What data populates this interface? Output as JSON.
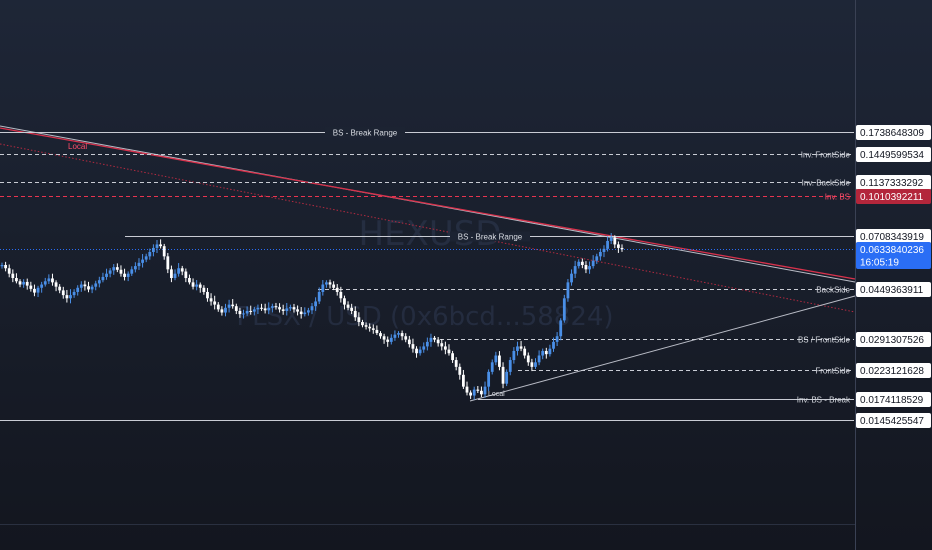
{
  "colors": {
    "up": "#4a8fe7",
    "down": "#ffffff",
    "level": "#c9ccd4",
    "red": "#e8344f",
    "current": "#2a6ef5",
    "axis_bg": "#ffffff",
    "axis_text": "#121621"
  },
  "watermark": {
    "ticker": "HEXUSD",
    "pair": "PLSX / USD (0x6bcd...58824)"
  },
  "chart_data": {
    "type": "candlestick",
    "title": "",
    "y_range": [
      0.0,
      0.19
    ],
    "levels": [
      {
        "name": "BS - Break Range",
        "label": "BS - Break Range",
        "value": 0.1738648309,
        "value_text": "0.1738648309",
        "style": "solid",
        "color": "#c9ccd4",
        "label_pos": "middle"
      },
      {
        "name": "Inv. FrontSide",
        "label": "Inv. FrontSide",
        "value": 0.1449599534,
        "value_text": "0.1449599534",
        "style": "dashed",
        "color": "#c9ccd4",
        "label_pos": "right"
      },
      {
        "name": "Inv. BackSide",
        "label": "Inv. BackSide",
        "value": 0.1137333292,
        "value_text": "0.1137333292",
        "style": "dashed",
        "color": "#c9ccd4",
        "label_pos": "right"
      },
      {
        "name": "Inv. BS",
        "label": "Inv. BS",
        "value": 0.1010392211,
        "value_text": "0.1010392211",
        "style": "dashed",
        "color": "#e8344f",
        "label_pos": "right"
      },
      {
        "name": "BS - Break Range",
        "label": "BS - Break Range",
        "value": 0.0708343919,
        "value_text": "0.0708343919",
        "style": "solid",
        "color": "#c9ccd4",
        "label_pos": "middle"
      },
      {
        "name": "BackSide",
        "label": "BackSide",
        "value": 0.0449363911,
        "value_text": "0.0449363911",
        "style": "dashed",
        "color": "#c9ccd4",
        "label_pos": "right"
      },
      {
        "name": "BS / FrontSide",
        "label": "BS / FrontSide",
        "value": 0.0291307526,
        "value_text": "0.0291307526",
        "style": "dashed",
        "color": "#c9ccd4",
        "label_pos": "right"
      },
      {
        "name": "FrontSide",
        "label": "FrontSide",
        "value": 0.0223121628,
        "value_text": "0.0223121628",
        "style": "dashed",
        "color": "#c9ccd4",
        "label_pos": "right"
      },
      {
        "name": "Inv. BS - Break",
        "label": "Inv. BS - Break",
        "value": 0.0174118529,
        "value_text": "0.0174118529",
        "style": "solid",
        "color": "#c9ccd4",
        "label_pos": "right"
      },
      {
        "name": "",
        "label": "",
        "value": 0.0145425547,
        "value_text": "0.0145425547",
        "style": "solid",
        "color": "#c9ccd4",
        "label_pos": "none"
      }
    ],
    "current_price": {
      "value": 0.0633840236,
      "value_text": "0.0633840236",
      "countdown": "16:05:19"
    },
    "trendline_labels": {
      "upper_red": "Local",
      "lower": "Local"
    },
    "closes": [
      0.056,
      0.0545,
      0.052,
      0.05,
      0.0485,
      0.047,
      0.0482,
      0.0465,
      0.045,
      0.0438,
      0.0455,
      0.047,
      0.0485,
      0.0498,
      0.048,
      0.046,
      0.0445,
      0.043,
      0.042,
      0.043,
      0.044,
      0.0455,
      0.047,
      0.0462,
      0.0448,
      0.046,
      0.0475,
      0.049,
      0.0505,
      0.052,
      0.0535,
      0.055,
      0.0538,
      0.052,
      0.0505,
      0.052,
      0.054,
      0.0555,
      0.057,
      0.0585,
      0.06,
      0.062,
      0.064,
      0.066,
      0.065,
      0.06,
      0.054,
      0.05,
      0.052,
      0.0545,
      0.053,
      0.05,
      0.048,
      0.046,
      0.047,
      0.0455,
      0.044,
      0.042,
      0.041,
      0.04,
      0.0385,
      0.0375,
      0.039,
      0.04,
      0.0395,
      0.038,
      0.037,
      0.0372,
      0.038,
      0.0378,
      0.0385,
      0.039,
      0.0388,
      0.0382,
      0.039,
      0.0395,
      0.0392,
      0.0385,
      0.038,
      0.0388,
      0.0392,
      0.0385,
      0.0378,
      0.037,
      0.0375,
      0.0382,
      0.0395,
      0.041,
      0.044,
      0.047,
      0.048,
      0.047,
      0.0455,
      0.044,
      0.042,
      0.04,
      0.039,
      0.038,
      0.036,
      0.0345,
      0.0335,
      0.033,
      0.0325,
      0.032,
      0.031,
      0.03,
      0.029,
      0.0285,
      0.0295,
      0.0305,
      0.031,
      0.03,
      0.029,
      0.028,
      0.027,
      0.026,
      0.0268,
      0.0275,
      0.0285,
      0.0295,
      0.029,
      0.0282,
      0.0275,
      0.0268,
      0.026,
      0.0245,
      0.023,
      0.0215,
      0.0195,
      0.0185,
      0.018,
      0.019,
      0.0188,
      0.0182,
      0.0195,
      0.022,
      0.024,
      0.0255,
      0.023,
      0.02,
      0.022,
      0.0245,
      0.0265,
      0.0275,
      0.027,
      0.0255,
      0.024,
      0.023,
      0.024,
      0.0255,
      0.0265,
      0.0258,
      0.027,
      0.0285,
      0.03,
      0.035,
      0.042,
      0.048,
      0.052,
      0.0555,
      0.0575,
      0.056,
      0.054,
      0.0555,
      0.058,
      0.06,
      0.062,
      0.0635,
      0.068,
      0.07,
      0.066,
      0.064,
      0.0633
    ]
  }
}
